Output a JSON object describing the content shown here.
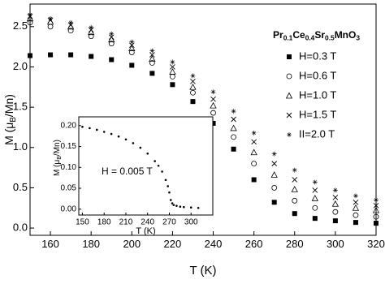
{
  "chart_data": [
    {
      "type": "scatter",
      "annotation": [
        "Pr",
        "0.1",
        "Ce",
        "0.4",
        "Sr",
        "0.5",
        "MnO",
        "3"
      ],
      "x_label": "T (K)",
      "y_label": [
        "M (μ",
        "B",
        "/Mn)"
      ],
      "x": [
        150,
        160,
        170,
        180,
        190,
        200,
        210,
        220,
        230,
        240,
        250,
        260,
        270,
        280,
        290,
        300,
        310,
        320
      ],
      "series": [
        {
          "name": "H=0.3 T",
          "color": "#000000",
          "marker": "square",
          "values": [
            2.14,
            2.15,
            2.15,
            2.13,
            2.09,
            2.02,
            1.92,
            1.78,
            1.57,
            1.3,
            0.98,
            0.6,
            0.32,
            0.18,
            0.12,
            0.09,
            0.07,
            0.06
          ]
        },
        {
          "name": "H=0.6 T",
          "color": "#000000",
          "marker": "circle",
          "values": [
            2.55,
            2.5,
            2.45,
            2.38,
            2.29,
            2.18,
            2.05,
            1.88,
            1.68,
            1.43,
            1.13,
            0.8,
            0.5,
            0.34,
            0.25,
            0.2,
            0.16,
            0.14
          ]
        },
        {
          "name": "H=1.0 T",
          "color": "#000000",
          "marker": "triangle",
          "values": [
            2.6,
            2.56,
            2.5,
            2.43,
            2.34,
            2.23,
            2.1,
            1.94,
            1.75,
            1.52,
            1.24,
            0.94,
            0.66,
            0.48,
            0.37,
            0.3,
            0.25,
            0.22
          ]
        },
        {
          "name": "H=1.5 T",
          "color": "#000000",
          "marker": "cross",
          "values": [
            2.63,
            2.58,
            2.52,
            2.46,
            2.37,
            2.27,
            2.15,
            2.0,
            1.82,
            1.6,
            1.35,
            1.07,
            0.8,
            0.6,
            0.47,
            0.38,
            0.32,
            0.28
          ]
        },
        {
          "name": "II=2.0 T",
          "color": "#000000",
          "marker": "star",
          "values": [
            2.65,
            2.6,
            2.55,
            2.49,
            2.41,
            2.31,
            2.2,
            2.06,
            1.89,
            1.69,
            1.45,
            1.18,
            0.92,
            0.72,
            0.57,
            0.47,
            0.4,
            0.35
          ]
        }
      ],
      "xlim": [
        150,
        320
      ],
      "ylim": [
        -0.09,
        2.78
      ],
      "xticks": [
        160,
        180,
        200,
        220,
        240,
        260,
        280,
        300,
        320
      ],
      "yticks": [
        {
          "value": 0,
          "label": "0.0"
        },
        {
          "value": 0.5,
          "label": "0.5"
        },
        {
          "value": 1,
          "label": "1.0"
        },
        {
          "value": 1.5,
          "label": "1.5"
        },
        {
          "value": 2,
          "label": "2.0"
        },
        {
          "value": 2.5,
          "label": "2.5"
        }
      ],
      "legend": "upper right"
    },
    {
      "type": "scatter",
      "annotation": "H = 0.005 T",
      "x_label": "T (K)",
      "y_label": [
        "M (μ",
        "B",
        "/Mn)"
      ],
      "x": [
        150,
        160,
        170,
        180,
        190,
        200,
        210,
        220,
        230,
        240,
        250,
        255,
        260,
        265,
        268,
        270,
        272,
        274,
        276,
        280,
        285,
        290,
        300,
        310
      ],
      "series": [
        {
          "color": "#000000",
          "marker": "dot",
          "values": [
            0.197,
            0.194,
            0.19,
            0.185,
            0.18,
            0.174,
            0.167,
            0.158,
            0.147,
            0.133,
            0.115,
            0.104,
            0.09,
            0.07,
            0.055,
            0.04,
            0.022,
            0.014,
            0.01,
            0.008,
            0.006,
            0.005,
            0.004,
            0.003
          ]
        }
      ],
      "xlim": [
        145,
        330
      ],
      "ylim": [
        -0.014,
        0.221
      ],
      "xticks": [
        150,
        180,
        210,
        240,
        270,
        300
      ],
      "yticks": [
        {
          "value": 0,
          "label": "0.00"
        },
        {
          "value": 0.05,
          "label": "0.05"
        },
        {
          "value": 0.1,
          "label": "0.10"
        },
        {
          "value": 0.15,
          "label": "0.15"
        },
        {
          "value": 0.2,
          "label": "0.20"
        }
      ]
    }
  ]
}
